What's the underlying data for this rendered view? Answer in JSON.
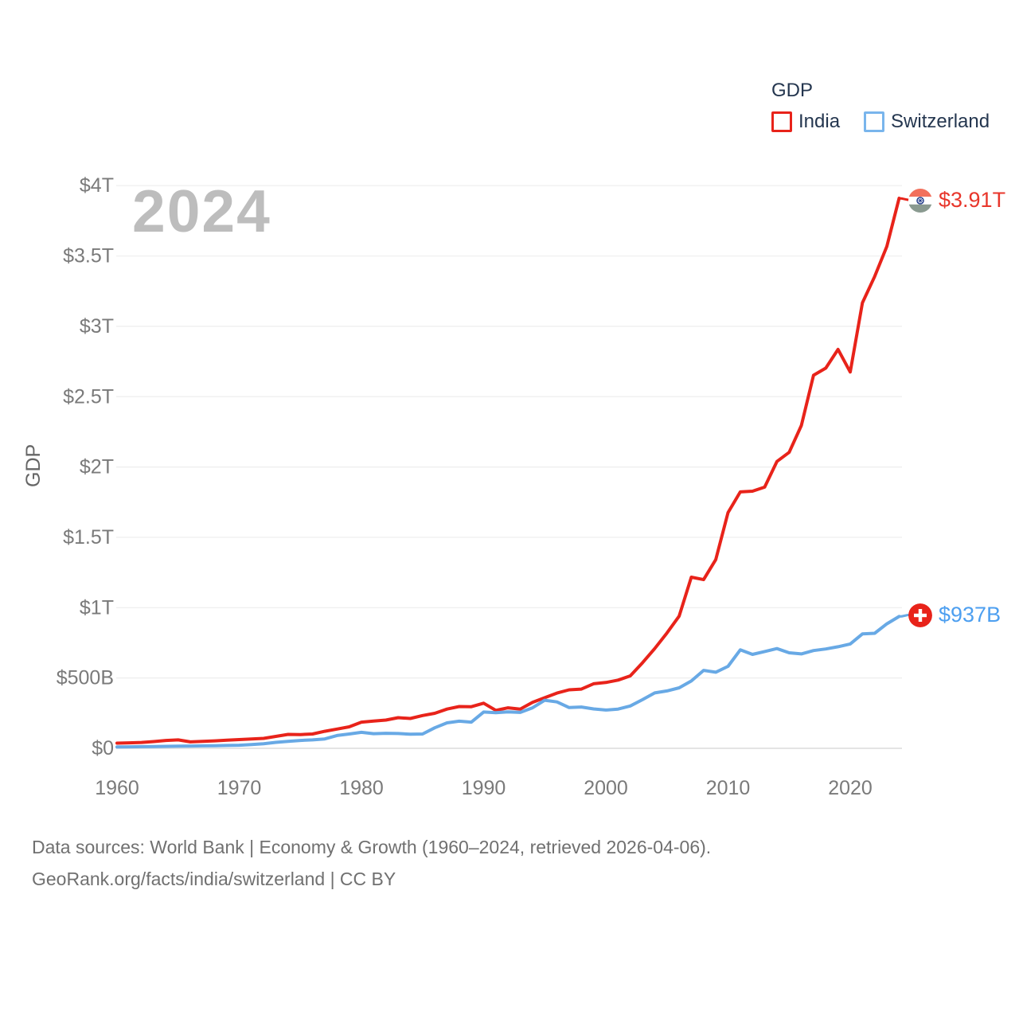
{
  "watermark": "2024",
  "legend": {
    "title": "GDP",
    "items": [
      {
        "label": "India",
        "swatch_color": "#e8231a"
      },
      {
        "label": "Switzerland",
        "swatch_color": "#79b5ec"
      }
    ]
  },
  "icons": {
    "india_flag": "circular-india-flag-icon",
    "switzerland_flag": "circular-swiss-flag-icon"
  },
  "footer": {
    "line1": "Data sources: World Bank | Economy & Growth (1960–2024, retrieved 2026-04-06).",
    "line2": "GeoRank.org/facts/india/switzerland | CC BY"
  },
  "chart_data": {
    "type": "line",
    "title": "GDP",
    "ylabel": "GDP",
    "units": "USD billions (current US$)",
    "grid": "horizontal",
    "legend_position": "top-right",
    "xlim": [
      1960,
      2024
    ],
    "ylim_billions": [
      0,
      4000
    ],
    "yticks": {
      "values_billions": [
        0,
        500,
        1000,
        1500,
        2000,
        2500,
        3000,
        3500,
        4000
      ],
      "labels": [
        "$0",
        "$500B",
        "$1T",
        "$1.5T",
        "$2T",
        "$2.5T",
        "$3T",
        "$3.5T",
        "$4T"
      ]
    },
    "xticks": [
      1960,
      1970,
      1980,
      1990,
      2000,
      2010,
      2020
    ],
    "x": [
      1960,
      1961,
      1962,
      1963,
      1964,
      1965,
      1966,
      1967,
      1968,
      1969,
      1970,
      1971,
      1972,
      1973,
      1974,
      1975,
      1976,
      1977,
      1978,
      1979,
      1980,
      1981,
      1982,
      1983,
      1984,
      1985,
      1986,
      1987,
      1988,
      1989,
      1990,
      1991,
      1992,
      1993,
      1994,
      1995,
      1996,
      1997,
      1998,
      1999,
      2000,
      2001,
      2002,
      2003,
      2004,
      2005,
      2006,
      2007,
      2008,
      2009,
      2010,
      2011,
      2012,
      2013,
      2014,
      2015,
      2016,
      2017,
      2018,
      2019,
      2020,
      2021,
      2022,
      2023,
      2024
    ],
    "series": [
      {
        "name": "India",
        "color": "#e8231a",
        "label_color": "#e8362b",
        "end_label": "$3.91T",
        "values_billions": [
          37,
          39,
          42,
          48,
          56,
          60,
          46,
          50,
          53,
          58,
          62,
          67,
          71,
          85,
          99,
          98,
          102,
          121,
          137,
          153,
          186,
          194,
          201,
          218,
          212,
          233,
          249,
          279,
          297,
          296,
          321,
          270,
          288,
          279,
          327,
          360,
          393,
          416,
          421,
          459,
          468,
          485,
          515,
          608,
          709,
          820,
          940,
          1217,
          1199,
          1342,
          1676,
          1823,
          1828,
          1857,
          2039,
          2104,
          2295,
          2652,
          2703,
          2836,
          2675,
          3167,
          3354,
          3568,
          3910
        ]
      },
      {
        "name": "Switzerland",
        "color": "#68a9e5",
        "label_color": "#4d9ff0",
        "end_label": "$937B",
        "values_billions": [
          9.5,
          10.7,
          11.9,
          12.9,
          14.2,
          15.3,
          16.3,
          17.6,
          18.9,
          20.4,
          22.2,
          27,
          33,
          42.5,
          49,
          56,
          60,
          67,
          91,
          102,
          114,
          104,
          107,
          105,
          100,
          102,
          146,
          181,
          193,
          186,
          258,
          253,
          259,
          255,
          288,
          342,
          330,
          290,
          294,
          280,
          272,
          279,
          301,
          346,
          394,
          408,
          430,
          479,
          554,
          541,
          583,
          700,
          668,
          688,
          709,
          679,
          671,
          695,
          706,
          722,
          742,
          813,
          818,
          885,
          937
        ]
      }
    ]
  }
}
